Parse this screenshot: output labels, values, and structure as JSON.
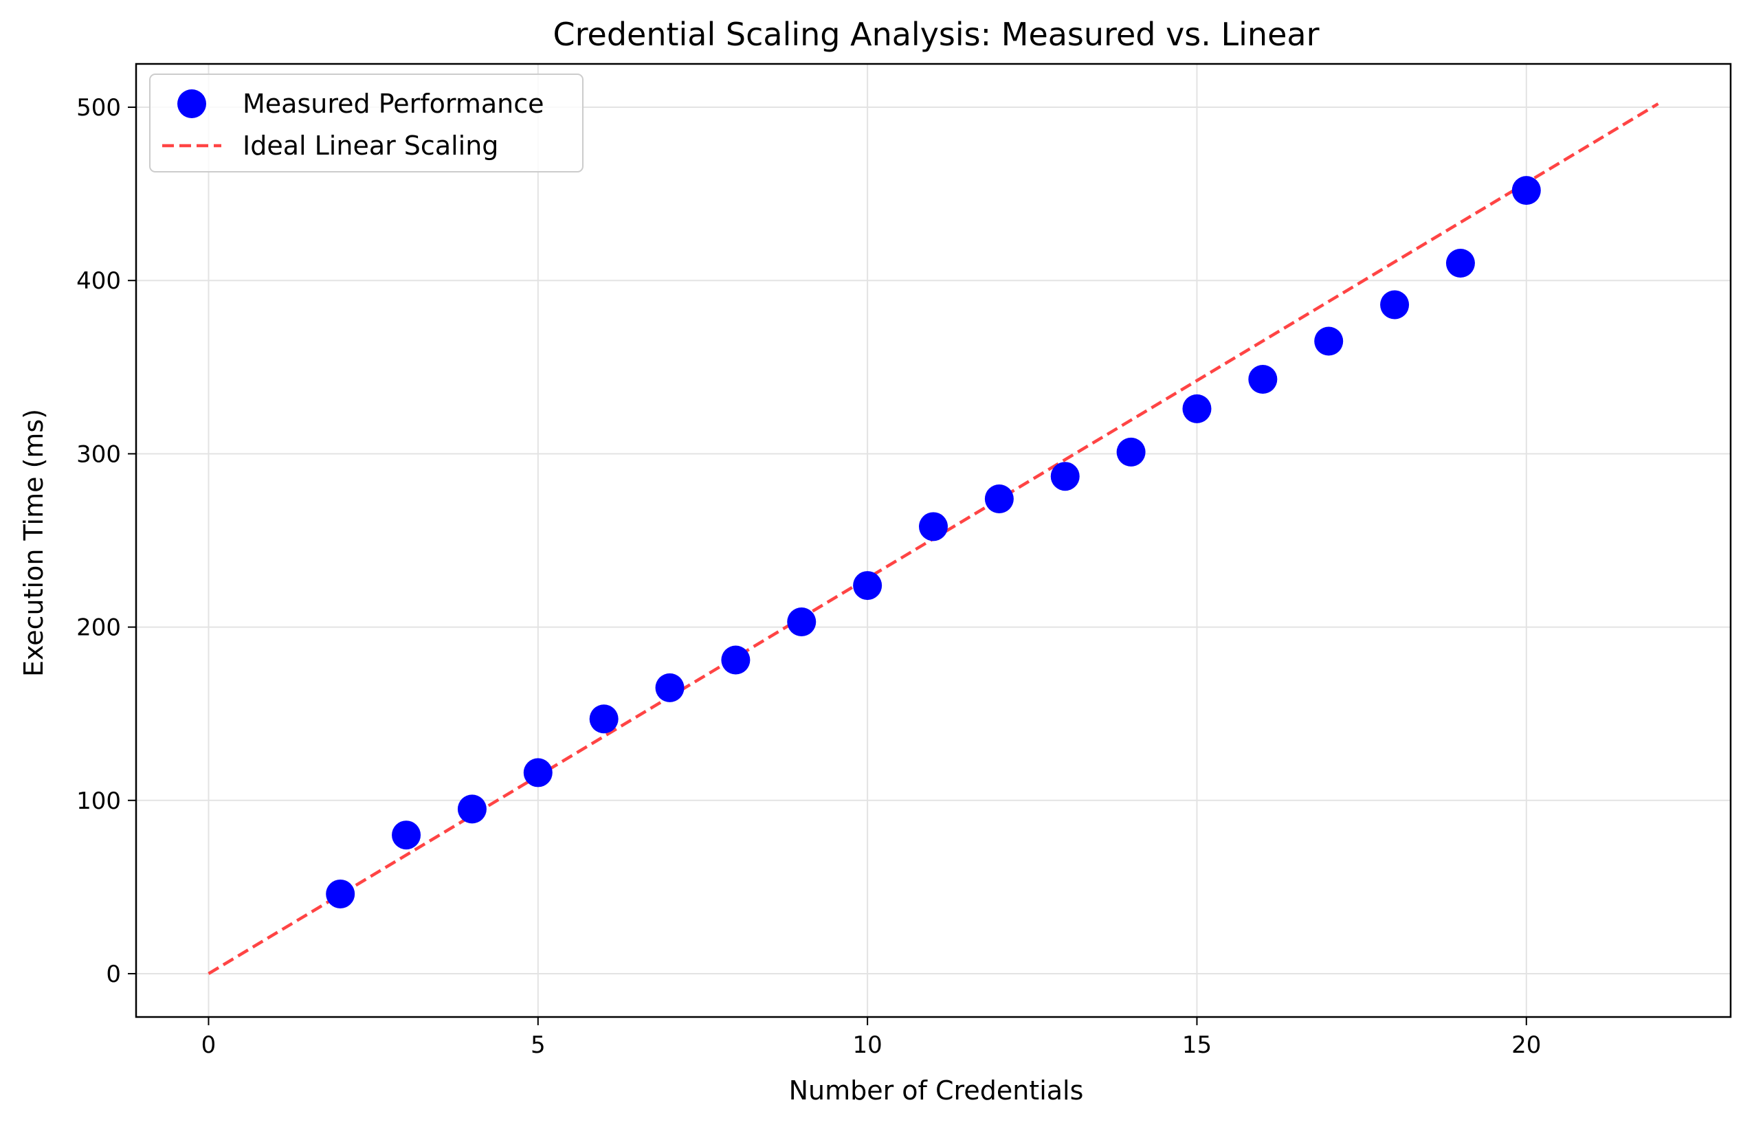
{
  "chart_data": {
    "type": "scatter",
    "title": "Credential Scaling Analysis: Measured vs. Linear",
    "xlabel": "Number of Credentials",
    "ylabel": "Execution Time (ms)",
    "xlim": [
      -1.1,
      23.1
    ],
    "ylim": [
      -25,
      525
    ],
    "xticks": [
      0,
      5,
      10,
      15,
      20
    ],
    "yticks": [
      0,
      100,
      200,
      300,
      400,
      500
    ],
    "grid": true,
    "legend_position": "top-left",
    "series": [
      {
        "name": "Measured Performance",
        "kind": "scatter",
        "color": "#0000ff",
        "x": [
          2,
          3,
          4,
          5,
          6,
          7,
          8,
          9,
          10,
          11,
          12,
          13,
          14,
          15,
          16,
          17,
          18,
          19,
          20
        ],
        "y": [
          46,
          80,
          95,
          116,
          147,
          165,
          181,
          203,
          224,
          258,
          274,
          287,
          301,
          326,
          343,
          365,
          386,
          410,
          452
        ]
      },
      {
        "name": "Ideal Linear Scaling",
        "kind": "line",
        "style": "dashed",
        "color": "#ff4444",
        "x": [
          0,
          22
        ],
        "y": [
          0,
          502
        ]
      }
    ]
  }
}
